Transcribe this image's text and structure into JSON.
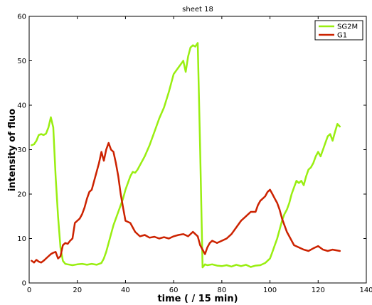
{
  "chart_data": {
    "type": "line",
    "title": "sheet 18",
    "xlabel": "time ( / 15 min)",
    "ylabel": "intensity of fluo",
    "xlim": [
      0,
      140
    ],
    "ylim": [
      0,
      60
    ],
    "xticks": [
      0,
      20,
      40,
      60,
      80,
      100,
      120,
      140
    ],
    "yticks": [
      0,
      10,
      20,
      30,
      40,
      50,
      60
    ],
    "grid": false,
    "legend_position": "top-right",
    "series": [
      {
        "name": "SG2M",
        "color": "#99ee11",
        "x": [
          1,
          2,
          3,
          4,
          5,
          6,
          7,
          8,
          9,
          10,
          11,
          12,
          13,
          14,
          15,
          16,
          18,
          20,
          22,
          24,
          26,
          28,
          30,
          31,
          32,
          33,
          34,
          35,
          36,
          37,
          38,
          39,
          40,
          41,
          42,
          43,
          44,
          45,
          46,
          48,
          50,
          52,
          54,
          56,
          58,
          60,
          62,
          64,
          65,
          66,
          67,
          68,
          69,
          70,
          71,
          72,
          73,
          74,
          76,
          78,
          80,
          82,
          84,
          86,
          88,
          90,
          92,
          94,
          96,
          98,
          100,
          101,
          102,
          103,
          104,
          105,
          106,
          107,
          108,
          109,
          110,
          111,
          112,
          113,
          114,
          115,
          116,
          117,
          118,
          119,
          120,
          121,
          122,
          123,
          124,
          125,
          126,
          127,
          128,
          129
        ],
        "y": [
          31,
          31.2,
          32,
          33.3,
          33.5,
          33.3,
          33.6,
          35,
          37.3,
          35,
          24,
          15,
          8,
          5,
          4.3,
          4.2,
          4.0,
          4.2,
          4.3,
          4.1,
          4.3,
          4.1,
          4.5,
          5.5,
          7,
          9,
          11,
          13,
          14.5,
          16,
          17.5,
          19,
          21,
          22.5,
          24,
          25,
          24.8,
          25.5,
          26.5,
          28.5,
          31,
          34,
          37,
          39.5,
          43,
          47,
          48.5,
          50,
          47.5,
          51,
          53,
          53.5,
          53.2,
          54,
          30,
          3.5,
          4.2,
          4.0,
          4.2,
          3.9,
          3.8,
          4.0,
          3.7,
          4.1,
          3.8,
          4.1,
          3.6,
          3.9,
          4.0,
          4.5,
          5.5,
          7,
          8.5,
          10,
          12,
          14,
          15.5,
          16.5,
          18,
          20,
          21.5,
          23,
          22.5,
          23,
          22,
          24,
          25.5,
          26,
          27,
          28.5,
          29.5,
          28.5,
          30,
          31.5,
          33,
          33.5,
          32,
          34,
          35.8,
          35.2
        ]
      },
      {
        "name": "G1",
        "color": "#cc2200",
        "x": [
          1,
          2,
          3,
          4,
          5,
          6,
          7,
          8,
          9,
          10,
          11,
          12,
          13,
          14,
          15,
          16,
          17,
          18,
          19,
          20,
          21,
          22,
          23,
          24,
          25,
          26,
          27,
          28,
          29,
          30,
          31,
          32,
          33,
          34,
          35,
          36,
          37,
          38,
          39,
          40,
          42,
          44,
          46,
          48,
          50,
          52,
          54,
          56,
          58,
          60,
          62,
          64,
          66,
          68,
          70,
          71,
          72,
          73,
          74,
          75,
          76,
          78,
          80,
          82,
          84,
          86,
          88,
          90,
          92,
          94,
          95,
          96,
          97,
          98,
          99,
          100,
          101,
          102,
          103,
          104,
          105,
          106,
          107,
          108,
          109,
          110,
          112,
          114,
          116,
          118,
          120,
          122,
          124,
          126,
          128,
          129
        ],
        "y": [
          5.0,
          4.6,
          5.2,
          4.8,
          4.6,
          5.0,
          5.5,
          6.0,
          6.5,
          6.8,
          7.0,
          5.5,
          6.0,
          8.5,
          9.0,
          8.8,
          9.5,
          10.0,
          13.5,
          14.0,
          14.5,
          15.5,
          17.0,
          19.0,
          20.5,
          21.0,
          23.0,
          25.0,
          27.0,
          29.5,
          27.5,
          30.0,
          31.5,
          30.0,
          29.5,
          27.0,
          24.0,
          20.0,
          17.0,
          14.0,
          13.5,
          11.5,
          10.5,
          10.8,
          10.2,
          10.4,
          10.0,
          10.3,
          10.0,
          10.5,
          10.8,
          11.0,
          10.5,
          11.5,
          10.5,
          8.5,
          7.5,
          6.5,
          8.0,
          9.0,
          9.5,
          9.0,
          9.5,
          10.0,
          11.0,
          12.5,
          14.0,
          15.0,
          16.0,
          16.0,
          17.5,
          18.5,
          19.0,
          19.5,
          20.5,
          21.0,
          20.0,
          19.0,
          18.0,
          16.5,
          14.5,
          13.0,
          11.5,
          10.5,
          9.5,
          8.5,
          8.0,
          7.5,
          7.2,
          7.8,
          8.3,
          7.5,
          7.2,
          7.5,
          7.3,
          7.2
        ]
      }
    ]
  }
}
